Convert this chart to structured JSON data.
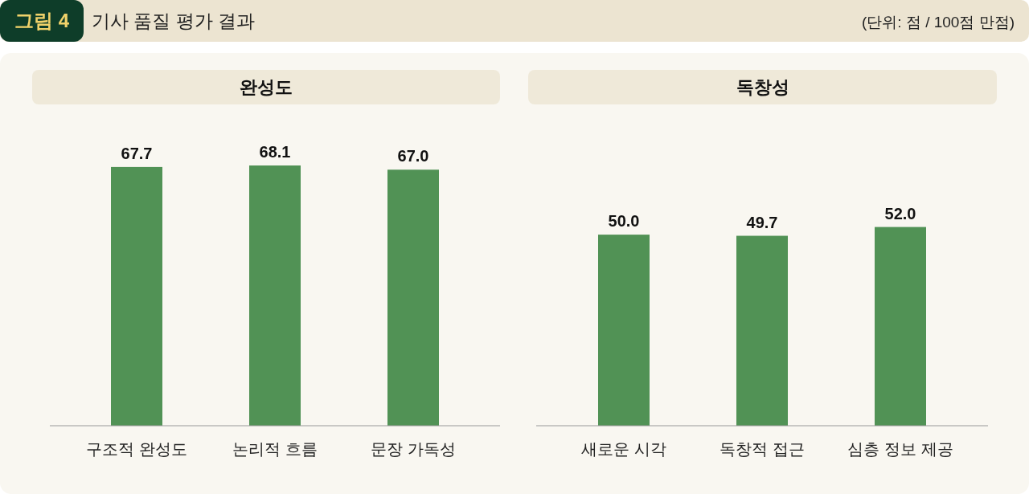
{
  "chart_data": [
    {
      "type": "bar",
      "title": "완성도",
      "annotations": [
        "그림 4",
        "기사 품질 평가 결과",
        "(단위: 점 / 100점 만점)"
      ],
      "categories": [
        "구조적 완성도",
        "논리적 흐름",
        "문장 가독성"
      ],
      "values": [
        67.7,
        68.1,
        67.0
      ],
      "value_labels": [
        "67.7",
        "68.1",
        "67.0"
      ],
      "color": "#519255"
    },
    {
      "type": "bar",
      "title": "독창성",
      "categories": [
        "새로운 시각",
        "독창적 접근",
        "심층 정보 제공"
      ],
      "values": [
        50.0,
        49.7,
        52.0
      ],
      "value_labels": [
        "50.0",
        "49.7",
        "52.0"
      ],
      "color": "#519255"
    }
  ]
}
